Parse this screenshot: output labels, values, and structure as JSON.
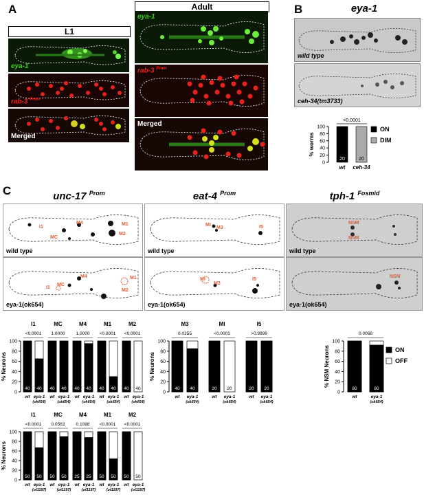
{
  "panels": {
    "A": {
      "letter": "A",
      "l1_header": "L1",
      "adult_header": "Adult",
      "eya1_label": "eya-1",
      "rab3_label": "rab-3",
      "rab3_sup": "Prom",
      "merged_label": "Merged"
    },
    "B": {
      "letter": "B",
      "title": "eya-1",
      "img1_caption": "wild type",
      "img2_caption": "ceh-34(tm3733)"
    },
    "C": {
      "letter": "C",
      "col1_title": "unc-17",
      "col1_sup": "Prom",
      "col2_title": "eat-4",
      "col2_sup": "Prom",
      "col3_title": "tph-1",
      "col3_sup": "Fosmid",
      "wt_caption": "wild type",
      "mut_caption": "eya-1(ok654)",
      "neuron_labels": {
        "unc17_wt": [
          "I1",
          "MC",
          "M4",
          "M1",
          "M2"
        ],
        "unc17_mut": [
          "I1",
          "MC",
          "M4",
          "M1",
          "M2"
        ],
        "eat4_wt": [
          "MI",
          "M3",
          "I5"
        ],
        "eat4_mut": [
          "MI",
          "M3",
          "I5"
        ],
        "tph1_wt": [
          "NSM",
          "NSM"
        ],
        "tph1_mut": [
          "NSM"
        ]
      }
    }
  },
  "chart_data": [
    {
      "type": "bar",
      "id": "B",
      "ylabel": "% worms",
      "ylim": [
        0,
        100
      ],
      "yticks": [
        0,
        20,
        40,
        60,
        80,
        100
      ],
      "categories": [
        "wt",
        "ceh-34"
      ],
      "pvalue": "<0.0001",
      "series": [
        {
          "name": "ON",
          "color": "#000000",
          "values": [
            100,
            0
          ]
        },
        {
          "name": "DIM",
          "color": "#aaaaaa",
          "values": [
            0,
            100
          ]
        }
      ],
      "n": [
        "20",
        "20"
      ],
      "legend": [
        {
          "name": "ON",
          "color": "#000000"
        },
        {
          "name": "DIM",
          "color": "#aaaaaa"
        }
      ]
    },
    {
      "type": "bar",
      "id": "C-cholinergic-ok654",
      "ylabel": "% Neurons",
      "ylim": [
        0,
        100
      ],
      "yticks": [
        0,
        20,
        40,
        60,
        80,
        100
      ],
      "groups": [
        {
          "name": "I1",
          "pvalue": "<0.0001",
          "on": [
            100,
            65
          ],
          "n": [
            "40",
            "40"
          ]
        },
        {
          "name": "MC",
          "pvalue": "1.0000",
          "on": [
            100,
            100
          ],
          "n": [
            "40",
            "40"
          ]
        },
        {
          "name": "M4",
          "pvalue": "1.0000",
          "on": [
            100,
            95
          ],
          "n": [
            "40",
            "40"
          ]
        },
        {
          "name": "M1",
          "pvalue": "<0.0001",
          "on": [
            100,
            30
          ],
          "n": [
            "40",
            "40"
          ]
        },
        {
          "name": "M2",
          "pvalue": "<0.0001",
          "on": [
            100,
            0
          ],
          "n": [
            "40",
            "40"
          ]
        }
      ],
      "xlabels": [
        "wt",
        "eya-1"
      ],
      "xsub": "(ok654)"
    },
    {
      "type": "bar",
      "id": "C-glutamatergic-ok654",
      "ylabel": "% Neurons",
      "ylim": [
        0,
        100
      ],
      "yticks": [
        0,
        20,
        40,
        60,
        80,
        100
      ],
      "groups": [
        {
          "name": "M3",
          "pvalue": "0.0255",
          "on": [
            100,
            85
          ],
          "n": [
            "40",
            "40"
          ]
        },
        {
          "name": "MI",
          "pvalue": "<0.0001",
          "on": [
            100,
            0
          ],
          "n": [
            "20",
            "20"
          ]
        },
        {
          "name": "I5",
          "pvalue": ">0.9999",
          "on": [
            100,
            100
          ],
          "n": [
            "20",
            "20"
          ]
        }
      ],
      "xlabels": [
        "wt",
        "eya-1"
      ],
      "xsub": "(ok654)"
    },
    {
      "type": "bar",
      "id": "C-serotonergic-ok654",
      "ylabel": "% NSM Neurons",
      "ylim": [
        0,
        100
      ],
      "yticks": [
        0,
        20,
        40,
        60,
        80,
        100
      ],
      "groups": [
        {
          "name": "",
          "pvalue": "0.0068",
          "on": [
            100,
            92
          ],
          "n": [
            "80",
            "80"
          ]
        }
      ],
      "xlabels": [
        "wt",
        "eya-1"
      ],
      "xsub": "(ok654)",
      "legend": [
        {
          "name": "ON",
          "color": "#000000"
        },
        {
          "name": "OFF",
          "color": "#ffffff"
        }
      ]
    },
    {
      "type": "bar",
      "id": "C-cholinergic-ot1197",
      "ylabel": "% Neurons",
      "ylim": [
        0,
        100
      ],
      "yticks": [
        0,
        20,
        40,
        60,
        80,
        100
      ],
      "groups": [
        {
          "name": "I1",
          "pvalue": "<0.0001",
          "on": [
            100,
            67
          ],
          "n": [
            "50",
            "50"
          ]
        },
        {
          "name": "MC",
          "pvalue": "0.0563",
          "on": [
            100,
            90
          ],
          "n": [
            "50",
            "50"
          ]
        },
        {
          "name": "M4",
          "pvalue": "0.1098",
          "on": [
            100,
            88
          ],
          "n": [
            "25",
            "25"
          ]
        },
        {
          "name": "M1",
          "pvalue": "<0.0001",
          "on": [
            100,
            44
          ],
          "n": [
            "50",
            "50"
          ]
        },
        {
          "name": "M2",
          "pvalue": "<0.0001",
          "on": [
            100,
            0
          ],
          "n": [
            "50",
            "50"
          ]
        }
      ],
      "xlabels": [
        "wt",
        "eya-1"
      ],
      "xsub": "(ot1197)"
    }
  ]
}
